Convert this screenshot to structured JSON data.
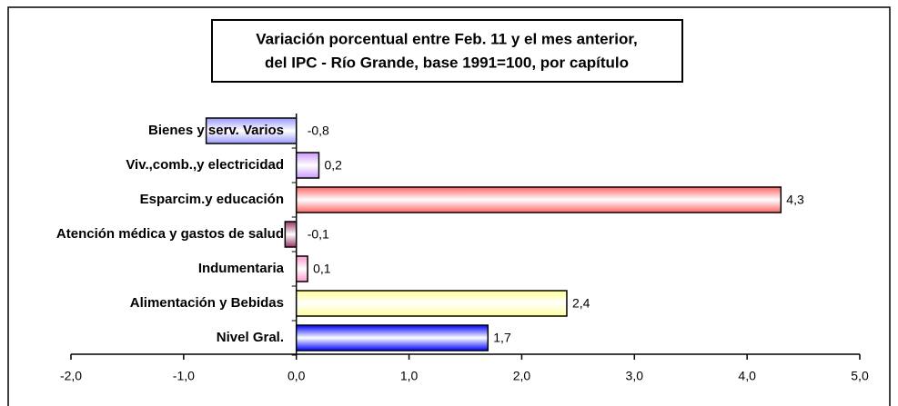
{
  "chart_data": {
    "type": "hbar",
    "title": [
      "Variación porcentual entre Feb. 11 y el mes anterior,",
      "del IPC - Río Grande, base 1991=100, por capítulo"
    ],
    "categories": [
      "Bienes y serv. Varios",
      "Viv.,comb.,y electricidad",
      "Esparcim.y educación",
      "Atención médica y gastos de salud",
      "Indumentaria",
      "Alimentación y Bebidas",
      "Nivel Gral."
    ],
    "values": [
      -0.8,
      0.2,
      4.3,
      -0.1,
      0.1,
      2.4,
      1.7
    ],
    "value_labels": [
      "-0,8",
      "0,2",
      "4,3",
      "-0,1",
      "0,1",
      "2,4",
      "1,7"
    ],
    "colors": [
      "#9999ff",
      "#cc99ff",
      "#ff6666",
      "#993366",
      "#ff99cc",
      "#ffff99",
      "#0000ff"
    ],
    "xlim": [
      -2,
      5
    ],
    "xticks": [
      {
        "value": -2,
        "label": "-2,0"
      },
      {
        "value": -1,
        "label": "-1,0"
      },
      {
        "value": 0,
        "label": "0,0"
      },
      {
        "value": 1,
        "label": "1,0"
      },
      {
        "value": 2,
        "label": "2,0"
      },
      {
        "value": 3,
        "label": "3,0"
      },
      {
        "value": 4,
        "label": "4,0"
      },
      {
        "value": 5,
        "label": "5,0"
      }
    ]
  }
}
